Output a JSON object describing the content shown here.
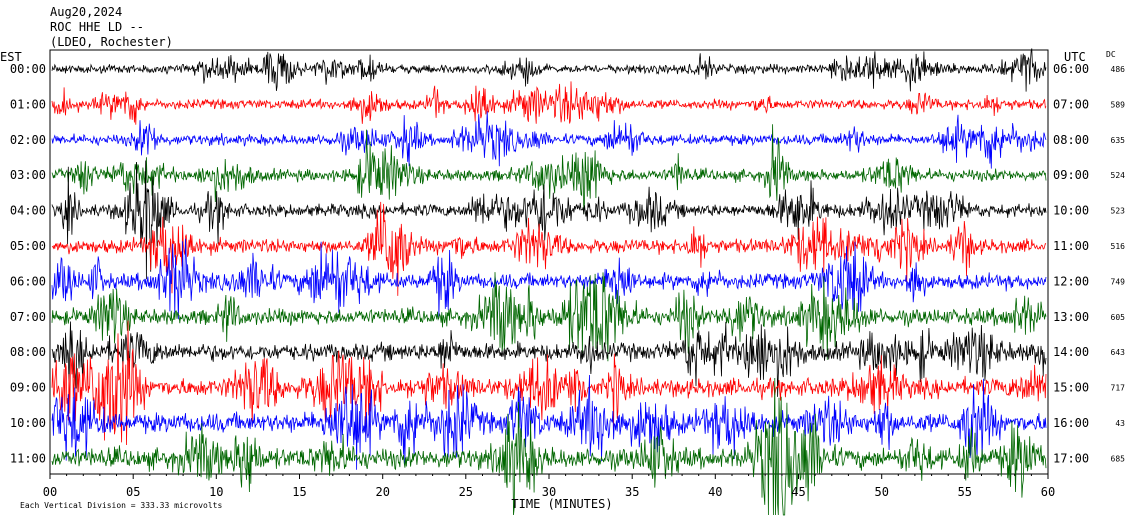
{
  "header": {
    "date": "Aug20,2024",
    "channel": "ROC HHE LD --",
    "network": "(LDEO, Rochester)"
  },
  "left_axis_label": "EST",
  "right_axis_label": "UTC",
  "dc_label": "DC",
  "footer": {
    "scale_note": "Each Vertical Division = 333.33 microvolts"
  },
  "chart_data": {
    "type": "line",
    "title": "",
    "xlabel": "TIME (MINUTES)",
    "ylabel": "",
    "xlim": [
      0,
      60
    ],
    "x_ticks": [
      "00",
      "05",
      "10",
      "15",
      "20",
      "25",
      "30",
      "35",
      "40",
      "45",
      "50",
      "55",
      "60"
    ],
    "series_colors": [
      "#000000",
      "#ff0000",
      "#0000ff",
      "#006600"
    ],
    "rows": [
      {
        "local": "00:00",
        "utc": "06:00",
        "dc": "486",
        "color": "#000000"
      },
      {
        "local": "01:00",
        "utc": "07:00",
        "dc": "589",
        "color": "#ff0000"
      },
      {
        "local": "02:00",
        "utc": "08:00",
        "dc": "635",
        "color": "#0000ff"
      },
      {
        "local": "03:00",
        "utc": "09:00",
        "dc": "524",
        "color": "#006600"
      },
      {
        "local": "04:00",
        "utc": "10:00",
        "dc": "523",
        "color": "#000000"
      },
      {
        "local": "05:00",
        "utc": "11:00",
        "dc": "516",
        "color": "#ff0000"
      },
      {
        "local": "06:00",
        "utc": "12:00",
        "dc": "749",
        "color": "#0000ff"
      },
      {
        "local": "07:00",
        "utc": "13:00",
        "dc": "605",
        "color": "#006600"
      },
      {
        "local": "08:00",
        "utc": "14:00",
        "dc": "643",
        "color": "#000000"
      },
      {
        "local": "09:00",
        "utc": "15:00",
        "dc": "717",
        "color": "#ff0000"
      },
      {
        "local": "10:00",
        "utc": "16:00",
        "dc": "43",
        "color": "#0000ff"
      },
      {
        "local": "11:00",
        "utc": "17:00",
        "dc": "685",
        "color": "#006600"
      }
    ]
  }
}
